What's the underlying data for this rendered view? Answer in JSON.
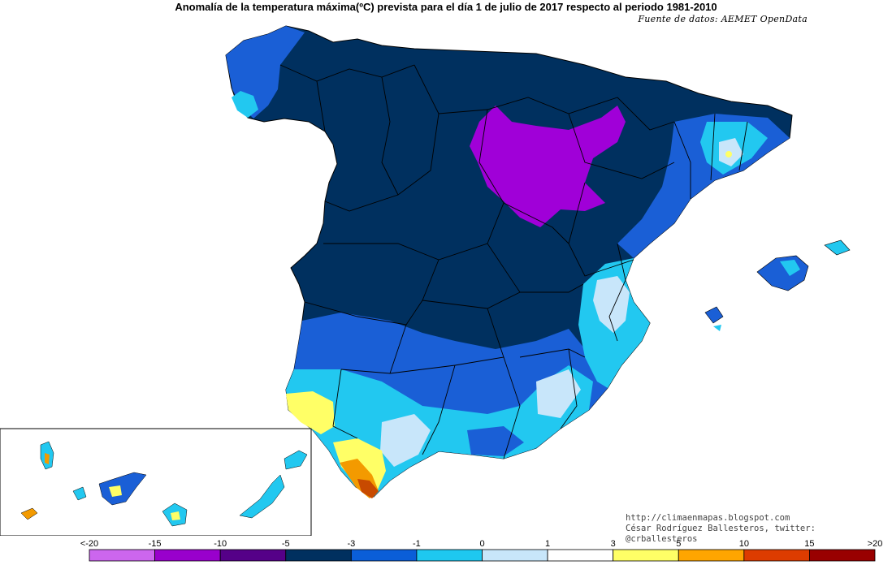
{
  "title": "Anomalía de la temperatura máxima(ºC) prevista para el día 1 de julio de 2017 respecto al periodo 1981-2010",
  "source": "Fuente de datos: AEMET OpenData",
  "credits": {
    "blog": "http://climaenmapas.blogspot.com",
    "author": "César Rodríguez Ballesteros, twitter: @crballesteros"
  },
  "legend": {
    "labels": [
      "<-20",
      "-15",
      "-10",
      "-5",
      "-3",
      "-1",
      "0",
      "1",
      "3",
      "5",
      "10",
      "15",
      ">20"
    ],
    "colors": [
      "#cc66ee",
      "#9900cc",
      "#550088",
      "#00305f",
      "#0a5ed8",
      "#1ec8f0",
      "#c8e6fa",
      "#ffffff",
      "#ffff66",
      "#ffa500",
      "#dd3c00",
      "#990000",
      "#6b3a00"
    ]
  },
  "colors": {
    "dark_navy": "#00305f",
    "mid_blue": "#1a5fd6",
    "cyan": "#22c8f0",
    "pale_blue": "#c8e6fa",
    "purple": "#a000d8",
    "yellow": "#ffff66",
    "orange": "#f39a00",
    "dark_orange": "#c84a00"
  }
}
